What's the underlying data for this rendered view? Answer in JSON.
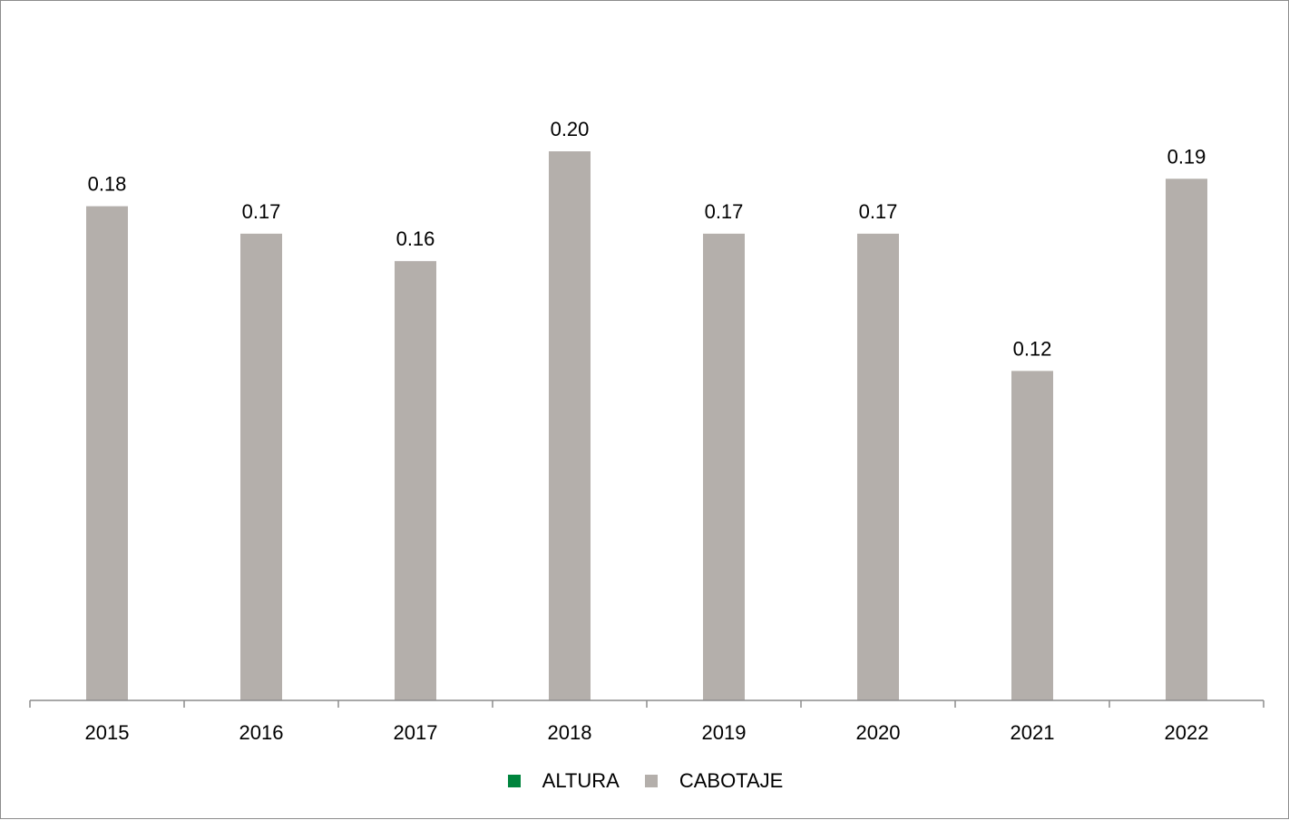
{
  "chart_data": {
    "type": "bar",
    "categories": [
      "2015",
      "2016",
      "2017",
      "2018",
      "2019",
      "2020",
      "2021",
      "2022"
    ],
    "series": [
      {
        "name": "ALTURA",
        "color": "#00843D",
        "values": [
          null,
          null,
          null,
          null,
          null,
          null,
          null,
          null
        ]
      },
      {
        "name": "CABOTAJE",
        "color": "#B4AFAB",
        "values": [
          0.18,
          0.17,
          0.16,
          0.2,
          0.17,
          0.17,
          0.12,
          0.19
        ]
      }
    ],
    "data_labels": [
      "0.18",
      "0.17",
      "0.16",
      "0.20",
      "0.17",
      "0.17",
      "0.12",
      "0.19"
    ],
    "ylim": [
      0,
      0.2
    ],
    "grid": false,
    "legend_position": "bottom"
  }
}
